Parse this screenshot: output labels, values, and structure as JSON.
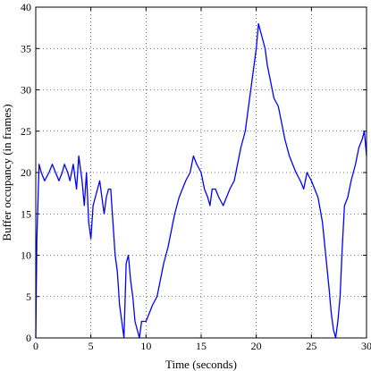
{
  "chart_data": {
    "type": "line",
    "title": "",
    "xlabel": "Time (seconds)",
    "ylabel": "Buffer occupancy (in frames)",
    "xlim": [
      0,
      30
    ],
    "ylim": [
      0,
      40
    ],
    "xticks": [
      0,
      5,
      10,
      15,
      20,
      25,
      30
    ],
    "yticks": [
      0,
      5,
      10,
      15,
      20,
      25,
      30,
      35,
      40
    ],
    "grid": true,
    "series_color": "#0000ff",
    "series": [
      {
        "name": "",
        "x": [
          0,
          0.1,
          0.3,
          0.5,
          0.8,
          1.2,
          1.5,
          1.8,
          2.1,
          2.4,
          2.6,
          2.9,
          3.1,
          3.4,
          3.7,
          3.9,
          4.2,
          4.4,
          4.6,
          4.8,
          5.0,
          5.2,
          5.4,
          5.6,
          5.8,
          6.0,
          6.2,
          6.4,
          6.6,
          6.8,
          7.0,
          7.2,
          7.4,
          7.6,
          7.8,
          8.0,
          8.2,
          8.4,
          8.6,
          8.8,
          9.0,
          9.2,
          9.4,
          9.6,
          9.8,
          10.0,
          10.3,
          10.6,
          11.0,
          11.3,
          11.6,
          12.0,
          12.3,
          12.6,
          13.0,
          13.3,
          13.6,
          14.0,
          14.3,
          14.6,
          15.0,
          15.3,
          15.6,
          15.8,
          16.0,
          16.3,
          16.6,
          17.0,
          17.3,
          17.6,
          18.0,
          18.3,
          18.6,
          19.0,
          19.3,
          19.6,
          19.8,
          20.0,
          20.2,
          20.4,
          20.6,
          20.8,
          21.0,
          21.3,
          21.6,
          22.0,
          22.3,
          22.6,
          23.0,
          23.3,
          23.6,
          24.0,
          24.3,
          24.6,
          25.0,
          25.3,
          25.6,
          26.0,
          26.3,
          26.6,
          26.8,
          27.0,
          27.2,
          27.4,
          27.6,
          27.8,
          28.0,
          28.3,
          28.6,
          29.0,
          29.3,
          29.6,
          29.8,
          30.0
        ],
        "y": [
          0,
          12,
          21,
          20,
          19,
          20,
          21,
          20,
          19,
          20,
          21,
          20,
          19,
          21,
          18,
          22,
          19,
          16,
          20,
          14,
          12,
          16,
          17,
          18,
          19,
          17,
          15,
          17,
          18,
          18,
          14,
          10,
          8,
          4,
          2,
          0,
          9,
          10,
          7,
          5,
          2,
          1,
          0,
          2,
          2,
          2,
          3,
          4,
          5,
          7,
          9,
          11,
          13,
          15,
          17,
          18,
          19,
          20,
          22,
          21,
          20,
          18,
          17,
          16,
          18,
          18,
          17,
          16,
          17,
          18,
          19,
          21,
          23,
          25,
          28,
          31,
          33,
          35,
          38,
          37,
          36,
          35,
          33,
          31,
          29,
          28,
          26,
          24,
          22,
          21,
          20,
          19,
          18,
          20,
          19,
          18,
          17,
          14,
          10,
          6,
          3,
          1,
          0,
          2,
          5,
          11,
          16,
          17,
          19,
          21,
          23,
          24,
          25,
          22
        ]
      }
    ]
  }
}
